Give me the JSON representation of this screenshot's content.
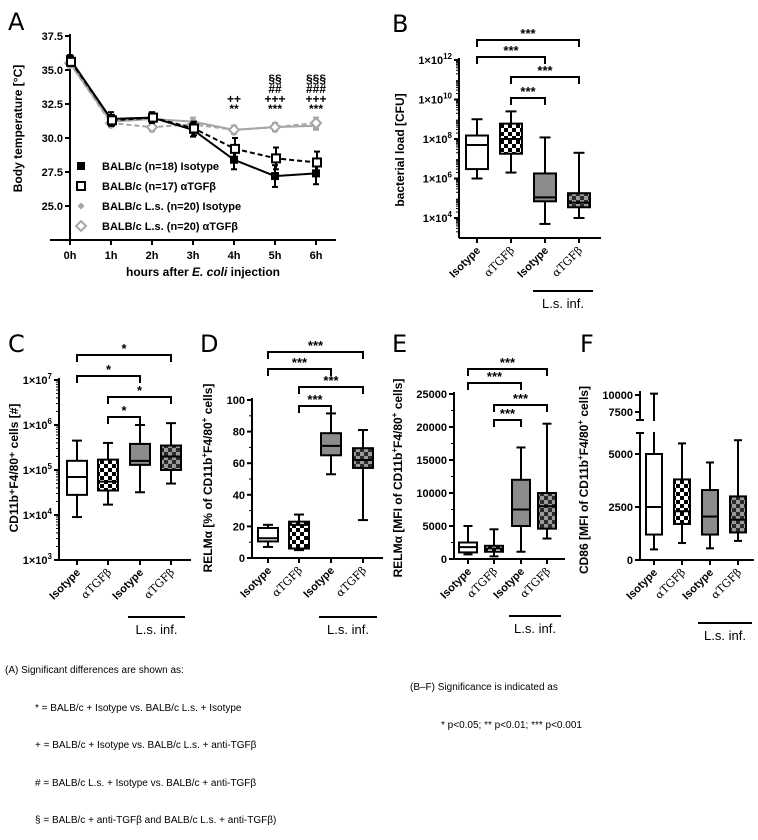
{
  "colors": {
    "black": "#000000",
    "gray_line": "#a6a6a6",
    "ls_isotype_fill": "#8c8c8c",
    "ls_atgfb_fill": "#606060",
    "white": "#ffffff"
  },
  "chart_data": [
    {
      "panel": "A",
      "type": "line",
      "ylabel": "Body temperature [°C]",
      "xlabel_parts": [
        "hours after ",
        "E. coli",
        " injection"
      ],
      "x": [
        "0h",
        "1h",
        "2h",
        "3h",
        "4h",
        "5h",
        "6h"
      ],
      "yticks": [
        "25.0",
        "27.5",
        "30.0",
        "32.5",
        "35.0",
        "37.5"
      ],
      "ylim": [
        22.5,
        37.5
      ],
      "grid": false,
      "legend_position": "bottom-left",
      "series": [
        {
          "name": "BALB/c (n=18) Isotype",
          "marker": "filled-square",
          "line": "solid",
          "color": "#000000",
          "values": [
            35.8,
            31.4,
            31.5,
            30.6,
            28.4,
            27.2,
            27.4
          ],
          "err": [
            0.3,
            0.5,
            0.4,
            0.5,
            0.7,
            0.8,
            0.8
          ]
        },
        {
          "name": "BALB/c (n=17) αTGFβ",
          "marker": "open-square",
          "line": "dashed",
          "color": "#000000",
          "values": [
            35.6,
            31.3,
            31.5,
            30.7,
            29.2,
            28.5,
            28.2
          ],
          "err": [
            0.3,
            0.4,
            0.3,
            0.5,
            0.8,
            0.8,
            0.8
          ]
        },
        {
          "name": "BALB/c L.s. (n=20) Isotype",
          "marker": "filled-diamond",
          "line": "solid",
          "color": "#a6a6a6",
          "values": [
            35.5,
            31.2,
            31.4,
            31.2,
            30.6,
            30.8,
            30.9
          ],
          "err": [
            0.3,
            0.4,
            0.3,
            0.3,
            0.3,
            0.3,
            0.3
          ]
        },
        {
          "name": "BALB/c L.s. (n=20) αTGFβ",
          "marker": "open-diamond",
          "line": "dashed",
          "color": "#a6a6a6",
          "values": [
            35.5,
            31.1,
            30.8,
            31.0,
            30.6,
            30.8,
            31.1
          ],
          "err": [
            0.3,
            0.3,
            0.3,
            0.3,
            0.3,
            0.3,
            0.4
          ]
        }
      ],
      "annotations": [
        {
          "x": "4h",
          "lines": [
            "++",
            "**"
          ]
        },
        {
          "x": "5h",
          "lines": [
            "§§",
            "##",
            "+++",
            "***"
          ]
        },
        {
          "x": "6h",
          "lines": [
            "§§§",
            "###",
            "+++",
            "***"
          ]
        }
      ]
    },
    {
      "panel": "B",
      "type": "box",
      "scale": "log",
      "ylabel": "bacterial load [CFU]",
      "yticks": [
        {
          "exp": 4
        },
        {
          "exp": 6
        },
        {
          "exp": 8
        },
        {
          "exp": 10
        },
        {
          "exp": 12
        }
      ],
      "ylim_log10": [
        3,
        12
      ],
      "categories": [
        "Isotype",
        "αTGFβ",
        "Isotype",
        "αTGFβ"
      ],
      "group_label": "L.s. inf.",
      "boxes": [
        {
          "min": 1000000.0,
          "q1": 3000000.0,
          "median": 50000000.0,
          "q3": 150000000.0,
          "max": 1000000000.0
        },
        {
          "min": 2000000.0,
          "q1": 18000000.0,
          "median": 100000000.0,
          "q3": 600000000.0,
          "max": 2500000000.0
        },
        {
          "min": 5000.0,
          "q1": 70000.0,
          "median": 110000.0,
          "q3": 1800000.0,
          "max": 120000000.0
        },
        {
          "min": 10000.0,
          "q1": 35000.0,
          "median": 60000.0,
          "q3": 180000.0,
          "max": 20000000.0
        }
      ],
      "significance": [
        {
          "from": 0,
          "to": 3,
          "label": "***"
        },
        {
          "from": 0,
          "to": 2,
          "label": "***"
        },
        {
          "from": 1,
          "to": 3,
          "label": "***"
        },
        {
          "from": 1,
          "to": 2,
          "label": "***"
        }
      ]
    },
    {
      "panel": "C",
      "type": "box",
      "scale": "log",
      "ylabel": "CD11b⁺F4/80⁺ cells [#]",
      "yticks": [
        {
          "exp": 3
        },
        {
          "exp": 4
        },
        {
          "exp": 5
        },
        {
          "exp": 6
        },
        {
          "exp": 7
        }
      ],
      "ylim_log10": [
        3,
        7
      ],
      "categories": [
        "Isotype",
        "αTGFβ",
        "Isotype",
        "αTGFβ"
      ],
      "group_label": "L.s. inf.",
      "boxes": [
        {
          "min": 9000.0,
          "q1": 28000.0,
          "median": 70000.0,
          "q3": 160000.0,
          "max": 450000.0
        },
        {
          "min": 17000.0,
          "q1": 35000.0,
          "median": 55000.0,
          "q3": 170000.0,
          "max": 400000.0
        },
        {
          "min": 32000.0,
          "q1": 130000.0,
          "median": 160000.0,
          "q3": 380000.0,
          "max": 1000000.0
        },
        {
          "min": 50000.0,
          "q1": 100000.0,
          "median": 200000.0,
          "q3": 350000.0,
          "max": 1100000.0
        }
      ],
      "significance": [
        {
          "from": 0,
          "to": 3,
          "label": "*"
        },
        {
          "from": 0,
          "to": 2,
          "label": "*"
        },
        {
          "from": 1,
          "to": 3,
          "label": "*"
        },
        {
          "from": 1,
          "to": 2,
          "label": "*"
        }
      ]
    },
    {
      "panel": "D",
      "type": "box",
      "scale": "linear",
      "ylabel_parts": [
        "RELMα [% of CD11b",
        "+",
        "F4/80",
        "+",
        " cells]"
      ],
      "yticks": [
        0,
        20,
        40,
        60,
        80,
        100
      ],
      "ylim": [
        0,
        100
      ],
      "categories": [
        "Isotype",
        "αTGFβ",
        "Isotype",
        "αTGFβ"
      ],
      "group_label": "L.s. inf.",
      "boxes": [
        {
          "min": 7,
          "q1": 10.5,
          "median": 12.5,
          "q3": 19,
          "max": 21
        },
        {
          "min": 5,
          "q1": 6,
          "median": 21,
          "q3": 23,
          "max": 27.5
        },
        {
          "min": 53,
          "q1": 65,
          "median": 71,
          "q3": 79,
          "max": 91.5
        },
        {
          "min": 24,
          "q1": 57,
          "median": 62,
          "q3": 69.5,
          "max": 81
        }
      ],
      "significance": [
        {
          "from": 0,
          "to": 3,
          "label": "***"
        },
        {
          "from": 0,
          "to": 2,
          "label": "***"
        },
        {
          "from": 1,
          "to": 3,
          "label": "***"
        },
        {
          "from": 1,
          "to": 2,
          "label": "***"
        }
      ]
    },
    {
      "panel": "E",
      "type": "box",
      "scale": "linear",
      "ylabel_parts": [
        "RELMα [MFI of CD11b",
        "+",
        "F4/80",
        "+",
        " cells]"
      ],
      "yticks": [
        0,
        5000,
        10000,
        15000,
        20000,
        25000
      ],
      "ylim": [
        0,
        25000
      ],
      "categories": [
        "Isotype",
        "αTGFβ",
        "Isotype",
        "αTGFβ"
      ],
      "group_label": "L.s. inf.",
      "boxes": [
        {
          "min": 700,
          "q1": 1000,
          "median": 1800,
          "q3": 2500,
          "max": 5000
        },
        {
          "min": 400,
          "q1": 1100,
          "median": 1600,
          "q3": 2000,
          "max": 4500
        },
        {
          "min": 1100,
          "q1": 5000,
          "median": 7500,
          "q3": 12000,
          "max": 16900
        },
        {
          "min": 3100,
          "q1": 4600,
          "median": 8000,
          "q3": 10000,
          "max": 20500
        }
      ],
      "significance": [
        {
          "from": 0,
          "to": 3,
          "label": "***"
        },
        {
          "from": 0,
          "to": 2,
          "label": "***"
        },
        {
          "from": 1,
          "to": 3,
          "label": "***"
        },
        {
          "from": 1,
          "to": 2,
          "label": "***"
        }
      ]
    },
    {
      "panel": "F",
      "type": "box",
      "scale": "linear-broken",
      "ylabel_parts": [
        "CD86 [MFI of CD11b",
        "+",
        "F4/80",
        "+",
        " cells]"
      ],
      "yticks_lower": [
        0,
        2500,
        5000
      ],
      "yticks_upper": [
        7500,
        10000
      ],
      "ylim_lower": [
        0,
        6000
      ],
      "ylim_upper": [
        6800,
        10500
      ],
      "categories": [
        "Isotype",
        "αTGFβ",
        "Isotype",
        "αTGFβ"
      ],
      "group_label": "L.s. inf.",
      "boxes": [
        {
          "min": 500,
          "q1": 1200,
          "median": 2500,
          "q3": 5000,
          "max": 10200
        },
        {
          "min": 800,
          "q1": 1700,
          "median": 2300,
          "q3": 3800,
          "max": 5500
        },
        {
          "min": 550,
          "q1": 1200,
          "median": 2050,
          "q3": 3300,
          "max": 4600
        },
        {
          "min": 900,
          "q1": 1300,
          "median": 1900,
          "q3": 3000,
          "max": 5650
        }
      ],
      "significance": []
    }
  ],
  "panel_labels": [
    "A",
    "B",
    "C",
    "D",
    "E",
    "F"
  ],
  "footnotes": {
    "a_title": "(A) Significant differences are shown as:",
    "a_lines": [
      "* = BALB/c + Isotype vs. BALB/c L.s. + Isotype",
      "+ = BALB/c + Isotype vs. BALB/c L.s. + anti-TGFβ",
      "# = BALB/c L.s. + Isotype vs. BALB/c + anti-TGFβ",
      "§ = BALB/c + anti-TGFβ and BALB/c L.s. + anti-TGFβ)"
    ],
    "bf_title": "(B–F) Significance is indicated as",
    "bf_line": "* p<0.05; ** p<0.01; *** p<0.001"
  }
}
